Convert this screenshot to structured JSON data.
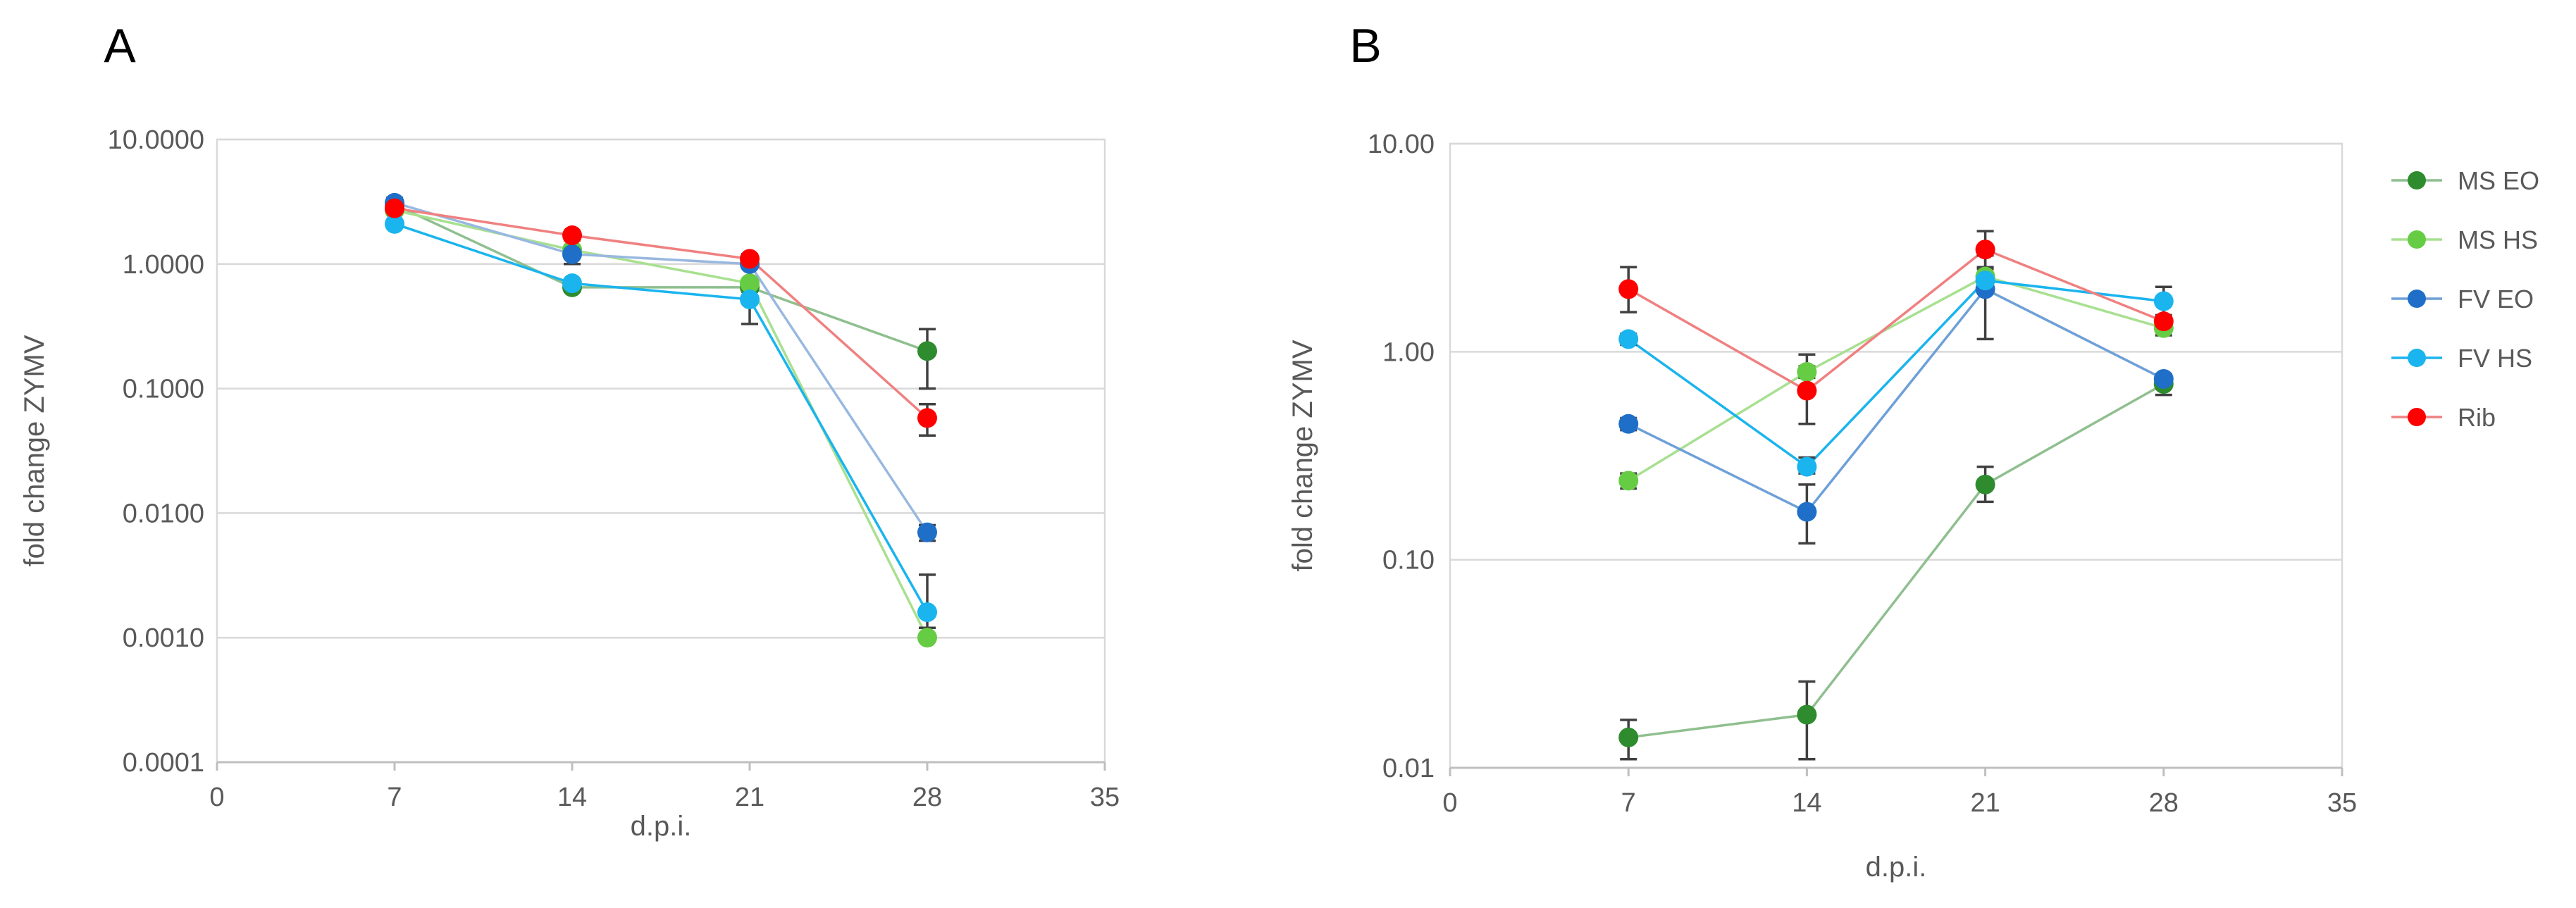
{
  "chart_data": [
    {
      "panel": "A",
      "type": "line",
      "xlabel": "d.p.i.",
      "ylabel": "fold change ZYMV",
      "y_scale": "log",
      "xlim": [
        0,
        35
      ],
      "ylim": [
        0.0001,
        10
      ],
      "x_ticks": [
        0,
        7,
        14,
        21,
        28,
        35
      ],
      "x_tick_labels": [
        "0",
        "7",
        "14",
        "21",
        "28",
        "35"
      ],
      "y_ticks": [
        0.0001,
        0.001,
        0.01,
        0.1,
        1,
        10
      ],
      "y_tick_labels": [
        "0.0001",
        "0.0010",
        "0.0100",
        "0.1000",
        "1.0000",
        "10.0000"
      ],
      "grid": true,
      "x": [
        7,
        14,
        21,
        28
      ],
      "series": [
        {
          "name": "MS EO",
          "color": "#2e8b2e",
          "line_color": "#8fbf8f",
          "values": [
            3.0,
            0.65,
            0.65,
            0.2
          ],
          "err_low": [
            2.7,
            0.6,
            0.6,
            0.1
          ],
          "err_high": [
            3.3,
            0.7,
            0.7,
            0.3
          ]
        },
        {
          "name": "MS HS",
          "color": "#66cc44",
          "line_color": "#a8e090",
          "values": [
            2.7,
            1.3,
            0.7,
            0.001
          ],
          "err_low": [
            2.5,
            1.2,
            0.65,
            0.001
          ],
          "err_high": [
            2.9,
            1.4,
            0.75,
            0.001
          ]
        },
        {
          "name": "FV EO",
          "color": "#1f6fc8",
          "line_color": "#99b8e0",
          "values": [
            3.1,
            1.2,
            1.0,
            0.007
          ],
          "err_low": [
            2.8,
            1.0,
            0.95,
            0.006
          ],
          "err_high": [
            3.4,
            1.4,
            1.05,
            0.008
          ]
        },
        {
          "name": "FV HS",
          "color": "#1ab4ee",
          "line_color": "#1ab4ee",
          "values": [
            2.1,
            0.7,
            0.52,
            0.0016
          ],
          "err_low": [
            2.0,
            0.65,
            0.33,
            0.0012
          ],
          "err_high": [
            2.2,
            0.75,
            0.7,
            0.0032
          ]
        },
        {
          "name": "Rib",
          "color": "#ff0000",
          "line_color": "#f08080",
          "values": [
            2.8,
            1.7,
            1.1,
            0.058
          ],
          "err_low": [
            2.6,
            1.55,
            1.0,
            0.042
          ],
          "err_high": [
            3.0,
            1.85,
            1.2,
            0.075
          ]
        }
      ]
    },
    {
      "panel": "B",
      "type": "line",
      "xlabel": "d.p.i.",
      "ylabel": "fold change ZYMV",
      "y_scale": "log",
      "xlim": [
        0,
        35
      ],
      "ylim": [
        0.01,
        10
      ],
      "x_ticks": [
        0,
        7,
        14,
        21,
        28,
        35
      ],
      "x_tick_labels": [
        "0",
        "7",
        "14",
        "21",
        "28",
        "35"
      ],
      "y_ticks": [
        0.01,
        0.1,
        1,
        10
      ],
      "y_tick_labels": [
        "0.01",
        "0.10",
        "1.00",
        "10.00"
      ],
      "grid": true,
      "legend_position": "right",
      "x": [
        7,
        14,
        21,
        28
      ],
      "series": [
        {
          "name": "MS EO",
          "color": "#2e8b2e",
          "line_color": "#8fbf8f",
          "values": [
            0.014,
            0.018,
            0.23,
            0.7
          ],
          "err_low": [
            0.011,
            0.011,
            0.19,
            0.62
          ],
          "err_high": [
            0.017,
            0.026,
            0.28,
            0.78
          ]
        },
        {
          "name": "MS HS",
          "color": "#66cc44",
          "line_color": "#a8e090",
          "values": [
            0.24,
            0.8,
            2.3,
            1.3
          ],
          "err_low": [
            0.22,
            0.75,
            2.1,
            1.2
          ],
          "err_high": [
            0.26,
            0.85,
            2.5,
            1.4
          ]
        },
        {
          "name": "FV EO",
          "color": "#1f6fc8",
          "line_color": "#6ea0d8",
          "values": [
            0.45,
            0.17,
            2.0,
            0.74
          ],
          "err_low": [
            0.42,
            0.12,
            1.15,
            0.7
          ],
          "err_high": [
            0.48,
            0.23,
            2.9,
            0.78
          ]
        },
        {
          "name": "FV HS",
          "color": "#1ab4ee",
          "line_color": "#1ab4ee",
          "values": [
            1.15,
            0.28,
            2.2,
            1.75
          ],
          "err_low": [
            1.08,
            0.26,
            2.0,
            1.45
          ],
          "err_high": [
            1.22,
            0.31,
            2.4,
            2.05
          ]
        },
        {
          "name": "Rib",
          "color": "#ff0000",
          "line_color": "#f08080",
          "values": [
            2.0,
            0.65,
            3.1,
            1.4
          ],
          "err_low": [
            1.55,
            0.45,
            2.55,
            1.3
          ],
          "err_high": [
            2.55,
            0.97,
            3.8,
            1.5
          ]
        }
      ]
    }
  ]
}
